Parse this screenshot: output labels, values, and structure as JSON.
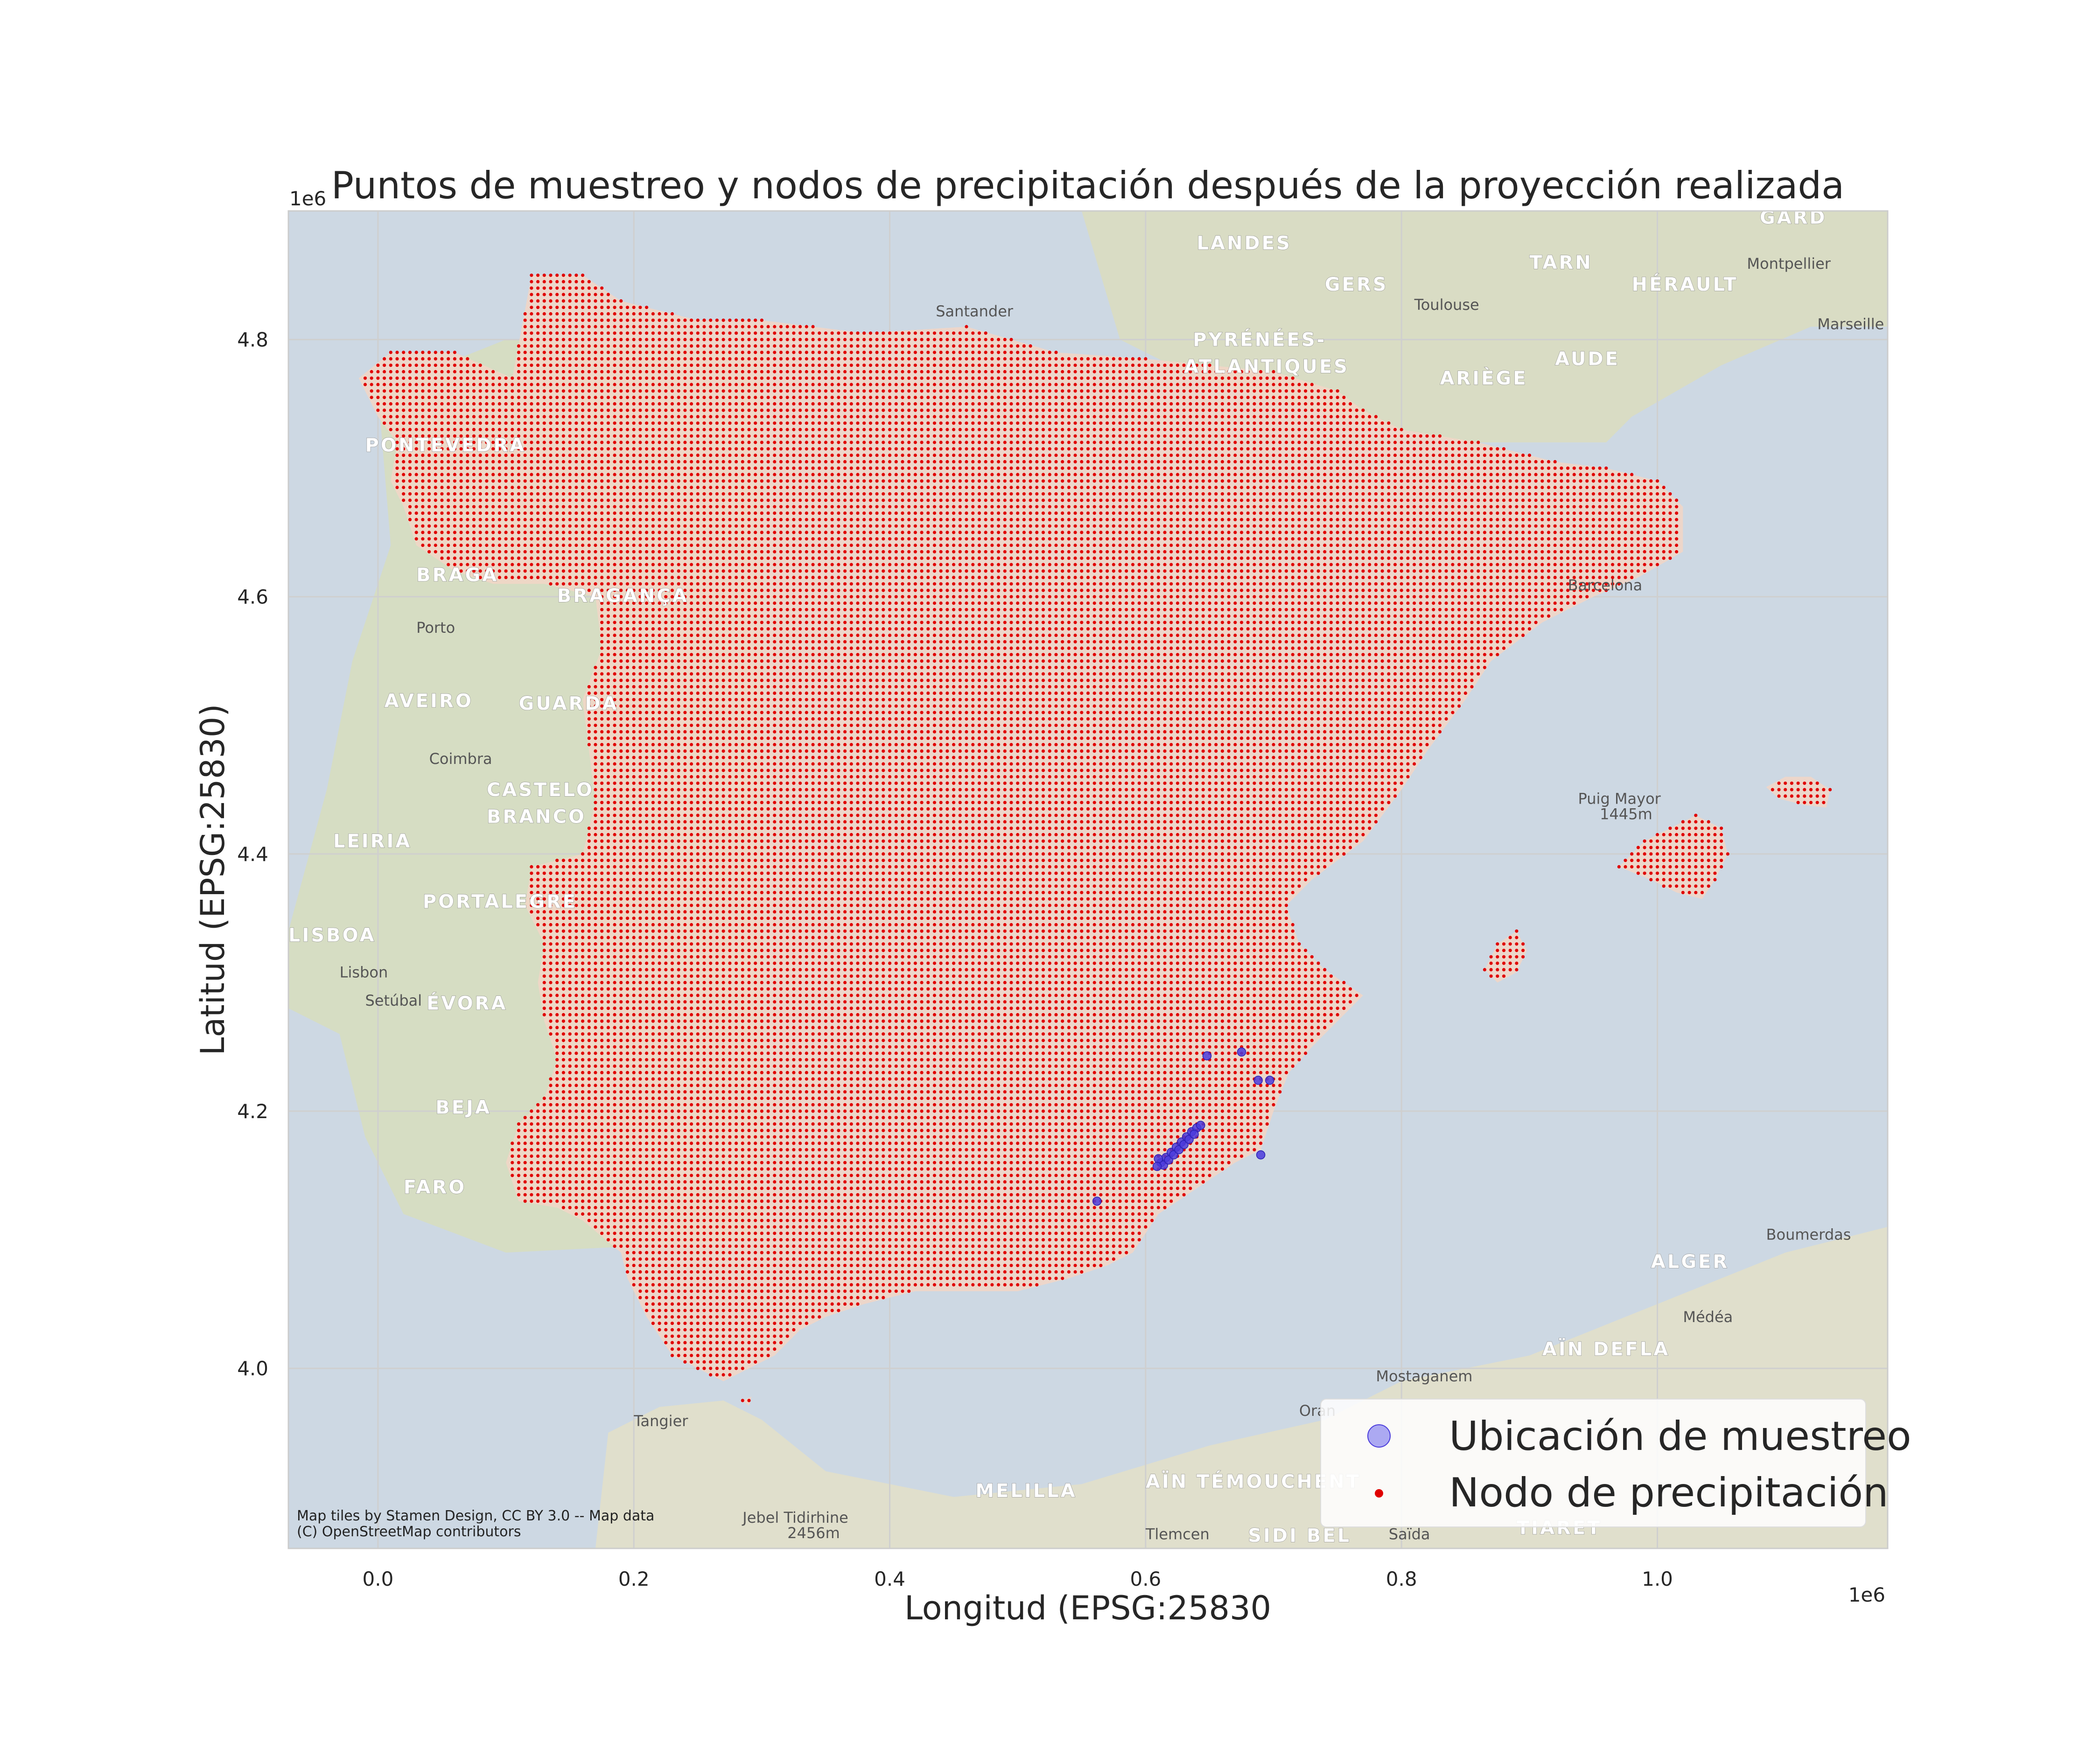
{
  "chart_data": {
    "type": "scatter",
    "title": "Puntos de muestreo y nodos de precipitación después de la proyección realizada",
    "xlabel": "Longitud (EPSG:25830",
    "ylabel": "Latitud (EPSG:25830)",
    "x_offset_label": "1e6",
    "y_offset_label": "1e6",
    "xlim": [
      -0.07,
      1.18
    ],
    "ylim": [
      3.86,
      4.9
    ],
    "x_ticks": [
      0.0,
      0.2,
      0.4,
      0.6,
      0.8,
      1.0
    ],
    "x_tick_labels": [
      "0.0",
      "0.2",
      "0.4",
      "0.6",
      "0.8",
      "1.0"
    ],
    "y_ticks": [
      4.0,
      4.2,
      4.4,
      4.6,
      4.8
    ],
    "y_tick_labels": [
      "4.0",
      "4.2",
      "4.4",
      "4.6",
      "4.8"
    ],
    "grid": true,
    "legend_position": "bottom-right",
    "series": [
      {
        "name": "Ubicación de muestreo",
        "color": "#4a3bdc",
        "points": [
          [
            0.612,
            4.16
          ],
          [
            0.616,
            4.164
          ],
          [
            0.62,
            4.168
          ],
          [
            0.624,
            4.172
          ],
          [
            0.628,
            4.176
          ],
          [
            0.632,
            4.18
          ],
          [
            0.636,
            4.184
          ],
          [
            0.64,
            4.187
          ],
          [
            0.643,
            4.189
          ],
          [
            0.614,
            4.158
          ],
          [
            0.618,
            4.162
          ],
          [
            0.622,
            4.166
          ],
          [
            0.626,
            4.17
          ],
          [
            0.63,
            4.174
          ],
          [
            0.634,
            4.178
          ],
          [
            0.638,
            4.182
          ],
          [
            0.61,
            4.163
          ],
          [
            0.609,
            4.157
          ],
          [
            0.648,
            4.243
          ],
          [
            0.675,
            4.246
          ],
          [
            0.688,
            4.224
          ],
          [
            0.697,
            4.224
          ],
          [
            0.69,
            4.166
          ],
          [
            0.562,
            4.13
          ]
        ]
      },
      {
        "name": "Nodo de precipitación",
        "color": "#e00000",
        "grid_spacing": 0.005,
        "regions": [
          {
            "name": "peninsula",
            "polygon": [
              [
                0.105,
                4.77
              ],
              [
                0.12,
                4.85
              ],
              [
                0.16,
                4.85
              ],
              [
                0.19,
                4.83
              ],
              [
                0.25,
                4.815
              ],
              [
                0.3,
                4.815
              ],
              [
                0.38,
                4.805
              ],
              [
                0.46,
                4.81
              ],
              [
                0.53,
                4.79
              ],
              [
                0.6,
                4.785
              ],
              [
                0.65,
                4.78
              ],
              [
                0.7,
                4.775
              ],
              [
                0.75,
                4.76
              ],
              [
                0.77,
                4.745
              ],
              [
                0.8,
                4.73
              ],
              [
                0.83,
                4.725
              ],
              [
                0.86,
                4.72
              ],
              [
                0.88,
                4.715
              ],
              [
                0.92,
                4.705
              ],
              [
                0.96,
                4.7
              ],
              [
                1.0,
                4.69
              ],
              [
                1.02,
                4.67
              ],
              [
                1.02,
                4.635
              ],
              [
                0.985,
                4.615
              ],
              [
                0.95,
                4.6
              ],
              [
                0.91,
                4.58
              ],
              [
                0.87,
                4.55
              ],
              [
                0.85,
                4.52
              ],
              [
                0.82,
                4.48
              ],
              [
                0.8,
                4.45
              ],
              [
                0.77,
                4.41
              ],
              [
                0.73,
                4.38
              ],
              [
                0.71,
                4.36
              ],
              [
                0.72,
                4.33
              ],
              [
                0.74,
                4.31
              ],
              [
                0.77,
                4.29
              ],
              [
                0.75,
                4.27
              ],
              [
                0.73,
                4.25
              ],
              [
                0.712,
                4.23
              ],
              [
                0.7,
                4.2
              ],
              [
                0.69,
                4.17
              ],
              [
                0.67,
                4.16
              ],
              [
                0.64,
                4.14
              ],
              [
                0.61,
                4.12
              ],
              [
                0.59,
                4.09
              ],
              [
                0.57,
                4.08
              ],
              [
                0.54,
                4.07
              ],
              [
                0.5,
                4.06
              ],
              [
                0.47,
                4.06
              ],
              [
                0.42,
                4.06
              ],
              [
                0.38,
                4.05
              ],
              [
                0.35,
                4.04
              ],
              [
                0.33,
                4.03
              ],
              [
                0.31,
                4.01
              ],
              [
                0.29,
                4.0
              ],
              [
                0.27,
                3.99
              ],
              [
                0.25,
                4.0
              ],
              [
                0.23,
                4.01
              ],
              [
                0.21,
                4.04
              ],
              [
                0.195,
                4.07
              ],
              [
                0.19,
                4.09
              ],
              [
                0.16,
                4.115
              ],
              [
                0.14,
                4.125
              ],
              [
                0.11,
                4.13
              ],
              [
                0.1,
                4.16
              ],
              [
                0.11,
                4.19
              ],
              [
                0.13,
                4.21
              ],
              [
                0.14,
                4.24
              ],
              [
                0.13,
                4.27
              ],
              [
                0.125,
                4.3
              ],
              [
                0.13,
                4.33
              ],
              [
                0.115,
                4.36
              ],
              [
                0.12,
                4.39
              ],
              [
                0.16,
                4.4
              ],
              [
                0.17,
                4.44
              ],
              [
                0.165,
                4.48
              ],
              [
                0.16,
                4.52
              ],
              [
                0.175,
                4.56
              ],
              [
                0.17,
                4.6
              ],
              [
                0.13,
                4.61
              ],
              [
                0.09,
                4.61
              ],
              [
                0.06,
                4.62
              ],
              [
                0.03,
                4.64
              ],
              [
                0.02,
                4.67
              ],
              [
                0.01,
                4.69
              ],
              [
                0.015,
                4.72
              ],
              [
                0.0,
                4.74
              ],
              [
                -0.015,
                4.77
              ],
              [
                0.01,
                4.79
              ],
              [
                0.06,
                4.79
              ]
            ]
          },
          {
            "name": "mallorca",
            "polygon": [
              [
                0.97,
                4.39
              ],
              [
                0.99,
                4.41
              ],
              [
                1.01,
                4.42
              ],
              [
                1.03,
                4.43
              ],
              [
                1.05,
                4.42
              ],
              [
                1.055,
                4.4
              ],
              [
                1.045,
                4.38
              ],
              [
                1.035,
                4.365
              ],
              [
                1.015,
                4.37
              ],
              [
                0.995,
                4.38
              ]
            ]
          },
          {
            "name": "menorca",
            "polygon": [
              [
                1.085,
                4.452
              ],
              [
                1.1,
                4.46
              ],
              [
                1.12,
                4.46
              ],
              [
                1.135,
                4.45
              ],
              [
                1.132,
                4.436
              ],
              [
                1.115,
                4.438
              ],
              [
                1.095,
                4.443
              ]
            ]
          },
          {
            "name": "ibiza",
            "polygon": [
              [
                0.865,
                4.31
              ],
              [
                0.875,
                4.33
              ],
              [
                0.89,
                4.34
              ],
              [
                0.898,
                4.325
              ],
              [
                0.89,
                4.308
              ],
              [
                0.875,
                4.3
              ]
            ]
          },
          {
            "name": "ceuta",
            "polygon": [
              [
                0.285,
                3.975
              ],
              [
                0.292,
                3.978
              ],
              [
                0.29,
                3.971
              ]
            ]
          }
        ]
      }
    ],
    "legend": [
      {
        "label": "Ubicación de muestreo",
        "marker": "circle-large",
        "color": "#8a86f0"
      },
      {
        "label": "Nodo de precipitación",
        "marker": "circle-small",
        "color": "#e00000"
      }
    ]
  },
  "basemap": {
    "attribution_line1": "Map tiles by Stamen Design, CC BY 3.0 -- Map data",
    "attribution_line2": "(C) OpenStreetMap contributors",
    "colors": {
      "sea": "#cdd8e3",
      "land_portugal": "#d6ddc3",
      "land_france": "#d9dcc4",
      "land_africa": "#e0dfcc",
      "land_spain": "#f1d6c6"
    },
    "labels": [
      {
        "text": "LANDES",
        "x": 0.64,
        "y": 4.87,
        "kind": "place"
      },
      {
        "text": "GERS",
        "x": 0.74,
        "y": 4.838,
        "kind": "place"
      },
      {
        "text": "TARN",
        "x": 0.9,
        "y": 4.855,
        "kind": "place"
      },
      {
        "text": "HÉRAULT",
        "x": 0.98,
        "y": 4.838,
        "kind": "place"
      },
      {
        "text": "GARD",
        "x": 1.08,
        "y": 4.89,
        "kind": "place"
      },
      {
        "text": "Montpellier",
        "x": 1.07,
        "y": 4.855,
        "kind": "city"
      },
      {
        "text": "Toulouse",
        "x": 0.81,
        "y": 4.823,
        "kind": "city"
      },
      {
        "text": "Marseille",
        "x": 1.125,
        "y": 4.808,
        "kind": "city"
      },
      {
        "text": "PYRÉNÉES-",
        "x": 0.637,
        "y": 4.795,
        "kind": "place"
      },
      {
        "text": "ATLANTIQUES",
        "x": 0.63,
        "y": 4.774,
        "kind": "place"
      },
      {
        "text": "AUDE",
        "x": 0.92,
        "y": 4.78,
        "kind": "place"
      },
      {
        "text": "ARIÈGE",
        "x": 0.83,
        "y": 4.765,
        "kind": "place"
      },
      {
        "text": "Santander",
        "x": 0.436,
        "y": 4.818,
        "kind": "city"
      },
      {
        "text": "PONTEVEDRA",
        "x": -0.01,
        "y": 4.713,
        "kind": "place"
      },
      {
        "text": "BRAGA",
        "x": 0.03,
        "y": 4.612,
        "kind": "place"
      },
      {
        "text": "BRAGANÇA",
        "x": 0.14,
        "y": 4.596,
        "kind": "place"
      },
      {
        "text": "Porto",
        "x": 0.03,
        "y": 4.572,
        "kind": "city"
      },
      {
        "text": "AVEIRO",
        "x": 0.005,
        "y": 4.514,
        "kind": "place"
      },
      {
        "text": "GUARDA",
        "x": 0.11,
        "y": 4.512,
        "kind": "place"
      },
      {
        "text": "Coimbra",
        "x": 0.04,
        "y": 4.47,
        "kind": "city"
      },
      {
        "text": "CASTELO",
        "x": 0.085,
        "y": 4.445,
        "kind": "place"
      },
      {
        "text": "BRANCO",
        "x": 0.085,
        "y": 4.424,
        "kind": "place"
      },
      {
        "text": "LEIRIA",
        "x": -0.035,
        "y": 4.405,
        "kind": "place"
      },
      {
        "text": "PORTALEGRE",
        "x": 0.035,
        "y": 4.358,
        "kind": "place"
      },
      {
        "text": "LISBOA",
        "x": -0.07,
        "y": 4.332,
        "kind": "place"
      },
      {
        "text": "Lisbon",
        "x": -0.03,
        "y": 4.304,
        "kind": "city"
      },
      {
        "text": "Setúbal",
        "x": -0.01,
        "y": 4.282,
        "kind": "city"
      },
      {
        "text": "ÉVORA",
        "x": 0.038,
        "y": 4.279,
        "kind": "place"
      },
      {
        "text": "BEJA",
        "x": 0.045,
        "y": 4.198,
        "kind": "place"
      },
      {
        "text": "FARO",
        "x": 0.02,
        "y": 4.136,
        "kind": "place"
      },
      {
        "text": "Puig Mayor",
        "x": 0.938,
        "y": 4.439,
        "kind": "city"
      },
      {
        "text": "1445m",
        "x": 0.955,
        "y": 4.427,
        "kind": "city"
      },
      {
        "text": "Boumerdas",
        "x": 1.085,
        "y": 4.1,
        "kind": "city"
      },
      {
        "text": "ALGER",
        "x": 0.995,
        "y": 4.078,
        "kind": "place"
      },
      {
        "text": "Médéa",
        "x": 1.02,
        "y": 4.036,
        "kind": "city"
      },
      {
        "text": "AÏN DEFLA",
        "x": 0.91,
        "y": 4.01,
        "kind": "place"
      },
      {
        "text": "Mostaganem",
        "x": 0.78,
        "y": 3.99,
        "kind": "city"
      },
      {
        "text": "Oran",
        "x": 0.72,
        "y": 3.963,
        "kind": "city"
      },
      {
        "text": "Tangier",
        "x": 0.2,
        "y": 3.955,
        "kind": "city"
      },
      {
        "text": "MELILLA",
        "x": 0.467,
        "y": 3.9,
        "kind": "place"
      },
      {
        "text": "AÏN TÉMOUCHENT",
        "x": 0.6,
        "y": 3.907,
        "kind": "place"
      },
      {
        "text": "Jebel Tidirhine",
        "x": 0.285,
        "y": 3.88,
        "kind": "city"
      },
      {
        "text": "2456m",
        "x": 0.32,
        "y": 3.868,
        "kind": "city"
      },
      {
        "text": "Tlemcen",
        "x": 0.6,
        "y": 3.867,
        "kind": "city"
      },
      {
        "text": "SIDI BEL",
        "x": 0.68,
        "y": 3.865,
        "kind": "place"
      },
      {
        "text": "Saïda",
        "x": 0.79,
        "y": 3.867,
        "kind": "city"
      },
      {
        "text": "TIARET",
        "x": 0.89,
        "y": 3.871,
        "kind": "place"
      },
      {
        "text": "Barcelona",
        "x": 0.93,
        "y": 4.605,
        "kind": "city"
      }
    ]
  }
}
